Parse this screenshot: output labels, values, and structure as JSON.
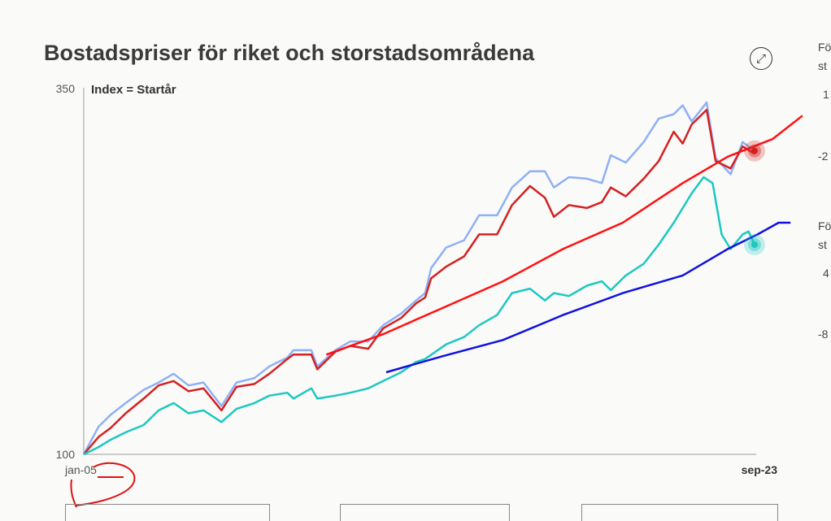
{
  "title": "Bostadspriser för riket och storstadsområdena",
  "expand_icon": "expand-arrows-icon",
  "side_panel": {
    "label1a": "Fö",
    "label1b": "st",
    "tick1a": "1",
    "tick1b": "-2",
    "label2a": "Fö",
    "label2b": "st",
    "tick2a": "4",
    "tick2b": "-8"
  },
  "chart_data": {
    "type": "line",
    "title": "Bostadspriser för riket och storstadsområdena",
    "ylabel": "Index = Startår",
    "ylim": [
      100,
      350
    ],
    "y_ticks": [
      "100",
      "350"
    ],
    "x_ticks": [
      "jan-05",
      "sep-23"
    ],
    "x_unit": "months since jan-05",
    "series": [
      {
        "name": "light-blue",
        "color": "#8fb0f5",
        "points": [
          [
            0,
            100
          ],
          [
            5,
            119
          ],
          [
            9,
            127
          ],
          [
            14,
            135
          ],
          [
            20,
            144
          ],
          [
            25,
            149
          ],
          [
            30,
            155
          ],
          [
            35,
            147
          ],
          [
            40,
            149
          ],
          [
            46,
            133
          ],
          [
            51,
            149
          ],
          [
            57,
            152
          ],
          [
            62,
            160
          ],
          [
            68,
            166
          ],
          [
            70,
            171
          ],
          [
            76,
            171
          ],
          [
            78,
            160
          ],
          [
            84,
            171
          ],
          [
            89,
            177
          ],
          [
            95,
            177
          ],
          [
            100,
            188
          ],
          [
            106,
            196
          ],
          [
            111,
            205
          ],
          [
            114,
            210
          ],
          [
            116,
            227
          ],
          [
            121,
            241
          ],
          [
            127,
            246
          ],
          [
            132,
            263
          ],
          [
            138,
            263
          ],
          [
            143,
            282
          ],
          [
            149,
            293
          ],
          [
            154,
            293
          ],
          [
            157,
            282
          ],
          [
            162,
            289
          ],
          [
            168,
            288
          ],
          [
            173,
            285
          ],
          [
            176,
            304
          ],
          [
            181,
            299
          ],
          [
            187,
            313
          ],
          [
            192,
            329
          ],
          [
            197,
            332
          ],
          [
            200,
            338
          ],
          [
            203,
            327
          ],
          [
            208,
            340
          ],
          [
            211,
            302
          ],
          [
            216,
            291
          ],
          [
            220,
            313
          ],
          [
            224,
            307
          ]
        ]
      },
      {
        "name": "red",
        "color": "#d42020",
        "points": [
          [
            0,
            100
          ],
          [
            5,
            112
          ],
          [
            9,
            118
          ],
          [
            14,
            128
          ],
          [
            20,
            138
          ],
          [
            25,
            147
          ],
          [
            30,
            150
          ],
          [
            35,
            143
          ],
          [
            40,
            145
          ],
          [
            46,
            130
          ],
          [
            51,
            146
          ],
          [
            57,
            148
          ],
          [
            62,
            155
          ],
          [
            68,
            165
          ],
          [
            70,
            168
          ],
          [
            76,
            168
          ],
          [
            78,
            158
          ],
          [
            84,
            170
          ],
          [
            89,
            174
          ],
          [
            95,
            172
          ],
          [
            100,
            186
          ],
          [
            106,
            193
          ],
          [
            111,
            203
          ],
          [
            114,
            207
          ],
          [
            116,
            220
          ],
          [
            121,
            228
          ],
          [
            127,
            235
          ],
          [
            132,
            250
          ],
          [
            138,
            250
          ],
          [
            143,
            270
          ],
          [
            149,
            283
          ],
          [
            154,
            275
          ],
          [
            157,
            262
          ],
          [
            162,
            270
          ],
          [
            168,
            268
          ],
          [
            173,
            272
          ],
          [
            176,
            282
          ],
          [
            181,
            276
          ],
          [
            187,
            288
          ],
          [
            192,
            300
          ],
          [
            197,
            320
          ],
          [
            200,
            312
          ],
          [
            203,
            325
          ],
          [
            208,
            335
          ],
          [
            211,
            300
          ],
          [
            216,
            295
          ],
          [
            220,
            310
          ],
          [
            224,
            305
          ]
        ]
      },
      {
        "name": "teal",
        "color": "#1cc8c0",
        "points": [
          [
            0,
            100
          ],
          [
            5,
            105
          ],
          [
            9,
            110
          ],
          [
            14,
            115
          ],
          [
            20,
            120
          ],
          [
            25,
            130
          ],
          [
            30,
            135
          ],
          [
            35,
            128
          ],
          [
            40,
            130
          ],
          [
            46,
            122
          ],
          [
            51,
            131
          ],
          [
            57,
            135
          ],
          [
            62,
            140
          ],
          [
            68,
            142
          ],
          [
            70,
            138
          ],
          [
            76,
            145
          ],
          [
            78,
            138
          ],
          [
            84,
            140
          ],
          [
            89,
            142
          ],
          [
            95,
            145
          ],
          [
            100,
            150
          ],
          [
            106,
            156
          ],
          [
            111,
            163
          ],
          [
            114,
            165
          ],
          [
            121,
            175
          ],
          [
            127,
            180
          ],
          [
            132,
            188
          ],
          [
            138,
            195
          ],
          [
            143,
            210
          ],
          [
            149,
            213
          ],
          [
            154,
            205
          ],
          [
            157,
            210
          ],
          [
            162,
            208
          ],
          [
            168,
            215
          ],
          [
            173,
            218
          ],
          [
            176,
            212
          ],
          [
            181,
            222
          ],
          [
            187,
            230
          ],
          [
            192,
            243
          ],
          [
            197,
            258
          ],
          [
            203,
            278
          ],
          [
            207,
            289
          ],
          [
            210,
            285
          ],
          [
            213,
            250
          ],
          [
            216,
            240
          ],
          [
            220,
            250
          ],
          [
            222,
            252
          ],
          [
            224,
            243
          ]
        ]
      },
      {
        "name": "red-trend",
        "color": "#ff1010",
        "points": [
          [
            81,
            168
          ],
          [
            100,
            182
          ],
          [
            120,
            200
          ],
          [
            140,
            218
          ],
          [
            160,
            240
          ],
          [
            180,
            258
          ],
          [
            200,
            285
          ],
          [
            215,
            303
          ],
          [
            230,
            315
          ],
          [
            240,
            331
          ]
        ]
      },
      {
        "name": "blue-trend",
        "color": "#1010e0",
        "points": [
          [
            101,
            156
          ],
          [
            120,
            167
          ],
          [
            140,
            178
          ],
          [
            160,
            195
          ],
          [
            180,
            210
          ],
          [
            200,
            222
          ],
          [
            215,
            240
          ],
          [
            225,
            250
          ],
          [
            232,
            258
          ],
          [
            236,
            258
          ]
        ]
      }
    ]
  }
}
